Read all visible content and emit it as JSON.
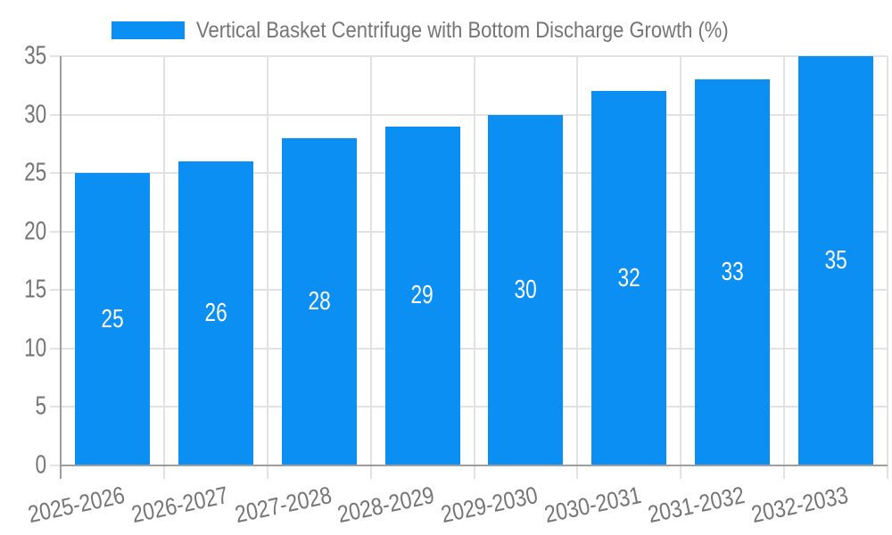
{
  "chart_data": {
    "type": "bar",
    "title": "Vertical Basket Centrifuge with Bottom Discharge Growth (%)",
    "categories": [
      "2025-2026",
      "2026-2027",
      "2027-2028",
      "2028-2029",
      "2029-2030",
      "2030-2031",
      "2031-2032",
      "2032-2033"
    ],
    "values": [
      25,
      26,
      28,
      29,
      30,
      32,
      33,
      35
    ],
    "xlabel": "",
    "ylabel": "",
    "ylim": [
      0,
      35
    ],
    "yticks": [
      0,
      5,
      10,
      15,
      20,
      25,
      30,
      35
    ],
    "grid": true,
    "legend_position": "top",
    "bar_labels_inside": true,
    "colors": {
      "bar": "#0b8ff3",
      "grid": "#e2e2e2",
      "axis": "#9e9e9e",
      "tick_text": "#757575",
      "bar_label_text": "#ffffff",
      "background": "#ffffff"
    }
  }
}
